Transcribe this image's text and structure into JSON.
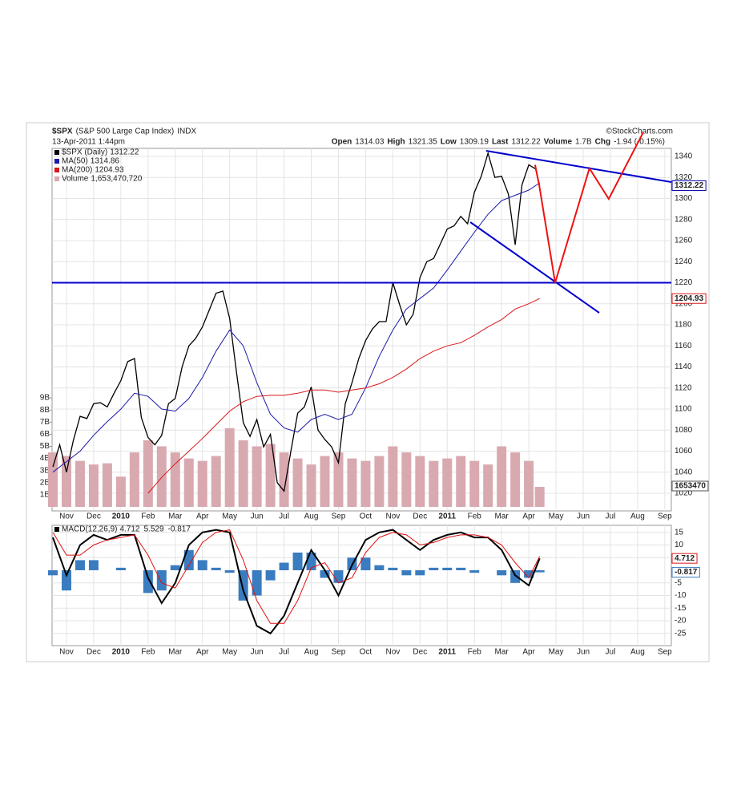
{
  "header": {
    "symbol": "$SPX",
    "name": "(S&P 500 Large Cap Index)",
    "exchange": "INDX",
    "date": "13-Apr-2011 1:44pm",
    "source": "©StockCharts.com",
    "quote": [
      {
        "label": "Open",
        "value": "1314.03"
      },
      {
        "label": "High",
        "value": "1321.35"
      },
      {
        "label": "Low",
        "value": "1309.19"
      },
      {
        "label": "Last",
        "value": "1312.22"
      },
      {
        "label": "Volume",
        "value": "1.7B"
      },
      {
        "label": "Chg",
        "value": "-1.94 (-0.15%)"
      }
    ]
  },
  "chart_data": [
    {
      "type": "line",
      "xlim": [
        0.47,
        23.24
      ],
      "xticks": [
        {
          "value": 1,
          "label": "Nov"
        },
        {
          "value": 2,
          "label": "Dec"
        },
        {
          "value": 3,
          "label": "2010"
        },
        {
          "value": 4,
          "label": "Feb"
        },
        {
          "value": 5,
          "label": "Mar"
        },
        {
          "value": 6,
          "label": "Apr"
        },
        {
          "value": 7,
          "label": "May"
        },
        {
          "value": 8,
          "label": "Jun"
        },
        {
          "value": 9,
          "label": "Jul"
        },
        {
          "value": 10,
          "label": "Aug"
        },
        {
          "value": 11,
          "label": "Sep"
        },
        {
          "value": 12,
          "label": "Oct"
        },
        {
          "value": 13,
          "label": "Nov"
        },
        {
          "value": 14,
          "label": "Dec"
        },
        {
          "value": 15,
          "label": "2011"
        },
        {
          "value": 16,
          "label": "Feb"
        },
        {
          "value": 17,
          "label": "Mar"
        },
        {
          "value": 18,
          "label": "Apr"
        },
        {
          "value": 19,
          "label": "May"
        },
        {
          "value": 20,
          "label": "Jun"
        },
        {
          "value": 21,
          "label": "Jul"
        },
        {
          "value": 22,
          "label": "Aug"
        },
        {
          "value": 23,
          "label": "Sep"
        }
      ],
      "ylim": [
        1003.2,
        1347.6
      ],
      "yticks": [
        1020,
        1040,
        1060,
        1080,
        1100,
        1120,
        1140,
        1160,
        1180,
        1200,
        1220,
        1240,
        1260,
        1280,
        1300,
        1320,
        1340
      ],
      "y2lim": [
        -0.33,
        29.6
      ],
      "y2ticks": [
        {
          "value": 1,
          "label": "1B"
        },
        {
          "value": 2,
          "label": "2B"
        },
        {
          "value": 3,
          "label": "3B"
        },
        {
          "value": 4,
          "label": "4B"
        },
        {
          "value": 5,
          "label": "5B"
        },
        {
          "value": 6,
          "label": "6B"
        },
        {
          "value": 7,
          "label": "7B"
        },
        {
          "value": 8,
          "label": "8B"
        },
        {
          "value": 9,
          "label": "9B"
        }
      ],
      "grid": true,
      "series": [
        {
          "name": "Volume",
          "type": "bar",
          "axis": "y2",
          "color": "#d9a9b0",
          "value_label": "1,653,470,720",
          "tag_label": "1653470",
          "x": [
            0.5,
            1,
            1.5,
            2,
            2.5,
            3,
            3.5,
            4,
            4.5,
            5,
            5.5,
            6,
            6.5,
            7,
            7.5,
            8,
            8.5,
            9,
            9.5,
            10,
            10.5,
            11,
            11.5,
            12,
            12.5,
            13,
            13.5,
            14,
            14.5,
            15,
            15.5,
            16,
            16.5,
            17,
            17.5,
            18,
            18.4
          ],
          "values": [
            4.5,
            4.2,
            3.8,
            3.5,
            3.6,
            2.5,
            4.5,
            5.5,
            5,
            4.5,
            4,
            3.8,
            4.2,
            6.5,
            5.5,
            5,
            5.2,
            4.5,
            4,
            3.5,
            4.2,
            4.5,
            4,
            3.8,
            4.2,
            5,
            4.5,
            4.2,
            3.8,
            4,
            4.2,
            3.8,
            3.5,
            5,
            4.5,
            3.8,
            1.65347072
          ]
        },
        {
          "name": "$SPX (Daily)",
          "color": "#000000",
          "x": [
            0.5,
            0.75,
            1,
            1.25,
            1.5,
            1.75,
            2,
            2.25,
            2.5,
            2.75,
            3,
            3.25,
            3.5,
            3.75,
            4,
            4.25,
            4.5,
            4.75,
            5,
            5.25,
            5.5,
            5.75,
            6,
            6.25,
            6.5,
            6.75,
            7,
            7.25,
            7.5,
            7.75,
            8,
            8.25,
            8.5,
            8.75,
            9,
            9.25,
            9.5,
            9.75,
            10,
            10.25,
            10.5,
            10.75,
            11,
            11.25,
            11.5,
            11.75,
            12,
            12.25,
            12.5,
            12.75,
            13,
            13.25,
            13.5,
            13.75,
            14,
            14.25,
            14.5,
            14.75,
            15,
            15.25,
            15.5,
            15.75,
            16,
            16.25,
            16.5,
            16.75,
            17,
            17.25,
            17.5,
            17.75,
            18,
            18.25,
            18.4
          ],
          "values": [
            1045,
            1066,
            1040,
            1070,
            1093,
            1091,
            1105,
            1106,
            1102,
            1115,
            1127,
            1145,
            1148,
            1092,
            1073,
            1066,
            1075,
            1105,
            1110,
            1140,
            1160,
            1167,
            1178,
            1194,
            1210,
            1212,
            1186,
            1135,
            1087,
            1074,
            1090,
            1064,
            1076,
            1030,
            1022,
            1060,
            1096,
            1102,
            1121,
            1080,
            1071,
            1064,
            1049,
            1105,
            1125,
            1148,
            1165,
            1176,
            1183,
            1183,
            1220,
            1199,
            1180,
            1190,
            1225,
            1240,
            1243,
            1257,
            1271,
            1274,
            1283,
            1276,
            1306,
            1321,
            1343,
            1320,
            1321,
            1304,
            1256,
            1313,
            1332,
            1328,
            1312.22
          ]
        },
        {
          "name": "MA(50)",
          "color": "#1a1aa8",
          "x": [
            0.5,
            1,
            1.5,
            2,
            2.5,
            3,
            3.5,
            4,
            4.5,
            5,
            5.5,
            6,
            6.5,
            7,
            7.5,
            8,
            8.5,
            9,
            9.5,
            10,
            10.5,
            11,
            11.5,
            12,
            12.5,
            13,
            13.5,
            14,
            14.5,
            15,
            15.5,
            16,
            16.5,
            17,
            17.5,
            18,
            18.4
          ],
          "values": [
            1040,
            1050,
            1060,
            1075,
            1088,
            1100,
            1115,
            1112,
            1100,
            1098,
            1110,
            1130,
            1155,
            1175,
            1160,
            1125,
            1095,
            1082,
            1078,
            1090,
            1095,
            1090,
            1095,
            1120,
            1150,
            1175,
            1195,
            1205,
            1215,
            1232,
            1250,
            1268,
            1285,
            1298,
            1303,
            1308,
            1314.86
          ]
        },
        {
          "name": "MA(200)",
          "color": "#d81818",
          "x": [
            0.5,
            1,
            1.5,
            2,
            2.5,
            3,
            3.5,
            4,
            4.5,
            5,
            5.5,
            6,
            6.5,
            7,
            7.5,
            8,
            8.5,
            9,
            9.5,
            10,
            10.5,
            11,
            11.5,
            12,
            12.5,
            13,
            13.5,
            14,
            14.5,
            15,
            15.5,
            16,
            16.5,
            17,
            17.5,
            18,
            18.4
          ],
          "values": [
            null,
            null,
            null,
            null,
            null,
            null,
            null,
            1020,
            1035,
            1048,
            1060,
            1072,
            1085,
            1098,
            1107,
            1112,
            1113,
            1113,
            1115,
            1118,
            1118,
            1116,
            1118,
            1120,
            1124,
            1130,
            1138,
            1148,
            1155,
            1160,
            1163,
            1170,
            1178,
            1185,
            1195,
            1200,
            1204.93
          ]
        }
      ],
      "lines": [
        {
          "color": "#0000cc",
          "points": [
            [
              0.47,
              1220
            ],
            [
              23.24,
              1220
            ]
          ]
        },
        {
          "color": "#0000cc",
          "points": [
            [
              16.43,
              1345.3
            ],
            [
              23.24,
              1315.6
            ]
          ]
        },
        {
          "color": "#0000cc",
          "points": [
            [
              15.85,
              1277.5
            ],
            [
              20.59,
              1191.4
            ]
          ]
        },
        {
          "color": "#ee1111",
          "points": [
            [
              18.23,
              1332
            ],
            [
              18.38,
              1313
            ],
            [
              18.97,
              1220
            ],
            [
              20.23,
              1328.6
            ],
            [
              20.94,
              1299.6
            ],
            [
              22.21,
              1362.9
            ]
          ]
        }
      ]
    },
    {
      "type": "macd",
      "title": "MACD(12,26,9)",
      "xlim": [
        0.47,
        23.24
      ],
      "ylim": [
        -29.84,
        17.78
      ],
      "yticks": [
        15,
        10,
        5,
        -5,
        -10,
        -15,
        -20,
        -25
      ],
      "grid": true,
      "x": [
        0.5,
        1,
        1.5,
        2,
        2.5,
        3,
        3.5,
        4,
        4.5,
        5,
        5.5,
        6,
        6.5,
        7,
        7.5,
        8,
        8.5,
        9,
        9.5,
        10,
        10.5,
        11,
        11.5,
        12,
        12.5,
        13,
        13.5,
        14,
        14.5,
        15,
        15.5,
        16,
        16.5,
        17,
        17.5,
        18,
        18.4
      ],
      "series": [
        {
          "name": "Histogram",
          "type": "bar",
          "color": "#3a7cc0",
          "values": [
            -2,
            -8,
            4,
            4,
            0,
            1,
            0,
            -9,
            -8,
            2,
            8,
            4,
            1,
            -1,
            -12,
            -10,
            -4,
            3,
            7,
            7,
            -3,
            -5,
            5,
            5,
            2,
            1,
            -2,
            -2,
            1,
            1,
            1,
            -1,
            0,
            -2,
            -5,
            -3,
            -0.817
          ]
        },
        {
          "name": "MACD",
          "color": "#000000",
          "values": [
            13,
            -2,
            10,
            14,
            12,
            14,
            14,
            -3,
            -13,
            -5,
            10,
            15,
            16,
            15,
            -8,
            -22,
            -25,
            -18,
            -5,
            8,
            0,
            -10,
            2,
            12,
            15,
            16,
            12,
            8,
            12,
            14,
            15,
            13,
            13,
            8,
            -2,
            -6,
            4.712
          ]
        },
        {
          "name": "Signal",
          "color": "#e01010",
          "values": [
            15,
            6,
            6,
            10,
            12,
            13,
            14,
            6,
            -5,
            -7,
            2,
            11,
            15,
            16,
            4,
            -12,
            -21,
            -21,
            -12,
            1,
            3,
            -5,
            -3,
            7,
            13,
            15,
            14,
            10,
            11,
            13,
            14,
            14,
            13,
            10,
            3,
            -3,
            5.529
          ]
        }
      ]
    }
  ]
}
